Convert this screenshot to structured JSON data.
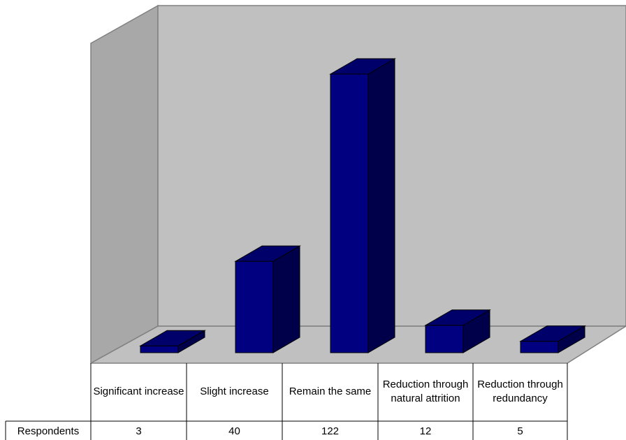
{
  "chart_data": {
    "type": "bar",
    "categories": [
      "Significant increase",
      "Slight increase",
      "Remain the same",
      "Reduction through natural attrition",
      "Reduction through redundancy"
    ],
    "series": [
      {
        "name": "Respondents",
        "values": [
          3,
          40,
          122,
          12,
          5
        ]
      }
    ],
    "title": "",
    "xlabel": "",
    "ylabel": "",
    "ylim": [
      0,
      122
    ],
    "grid": false,
    "legend": "none",
    "data_table": true,
    "colors": {
      "bar_front": "#000080",
      "bar_top": "#00006A",
      "bar_side": "#00004A",
      "back_wall": "#C0C0C0",
      "side_wall": "#A8A8A8",
      "floor": "#C0C0C0"
    }
  }
}
